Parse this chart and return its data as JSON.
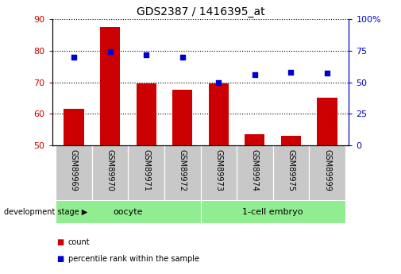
{
  "title": "GDS2387 / 1416395_at",
  "samples": [
    "GSM89969",
    "GSM89970",
    "GSM89971",
    "GSM89972",
    "GSM89973",
    "GSM89974",
    "GSM89975",
    "GSM89999"
  ],
  "bar_values": [
    61.5,
    87.5,
    69.5,
    67.5,
    69.5,
    53.5,
    53.0,
    65.0
  ],
  "percentile_values": [
    70.0,
    74.5,
    72.0,
    70.0,
    50.0,
    56.0,
    58.0,
    57.5
  ],
  "left_ylim": [
    50,
    90
  ],
  "left_yticks": [
    50,
    60,
    70,
    80,
    90
  ],
  "right_ylim": [
    0,
    100
  ],
  "right_yticks": [
    0,
    25,
    50,
    75,
    100
  ],
  "right_yticklabels": [
    "0",
    "25",
    "50",
    "75",
    "100%"
  ],
  "bar_color": "#cc0000",
  "dot_color": "#0000cc",
  "bar_width": 0.55,
  "tick_bg_color": "#c8c8c8",
  "group_color": "#90ee90",
  "stage_label": "development stage",
  "legend_items": [
    {
      "label": "count",
      "color": "#cc0000"
    },
    {
      "label": "percentile rank within the sample",
      "color": "#0000cc"
    }
  ],
  "title_fontsize": 10,
  "tick_fontsize": 7,
  "label_fontsize": 7,
  "groups": [
    {
      "label": "oocyte",
      "start": 0,
      "end": 3
    },
    {
      "label": "1-cell embryo",
      "start": 4,
      "end": 7
    }
  ]
}
